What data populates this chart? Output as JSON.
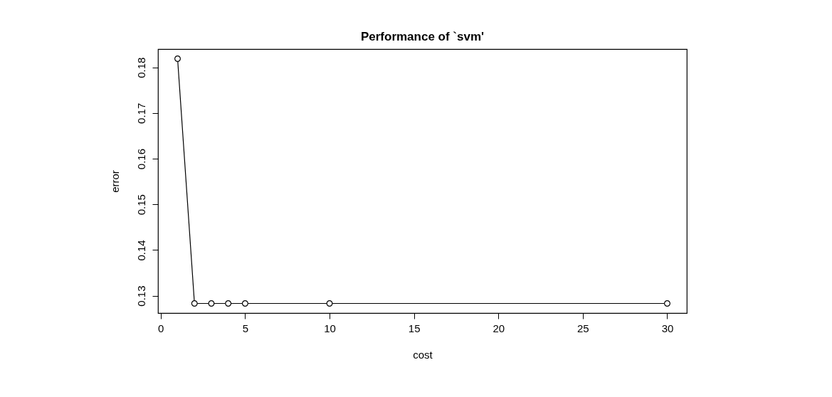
{
  "chart_data": {
    "type": "line",
    "title": "Performance of `svm'",
    "xlabel": "cost",
    "ylabel": "error",
    "marker": "circle",
    "line_style": "solid",
    "x": [
      1,
      2,
      3,
      4,
      5,
      10,
      30
    ],
    "series": [
      {
        "color": "#000000",
        "values": [
          0.1819,
          0.1283,
          0.1283,
          0.1283,
          0.1283,
          0.1283,
          0.1283
        ]
      }
    ],
    "xlim": [
      -0.16,
      31.16
    ],
    "xticks": [
      0,
      5,
      10,
      15,
      20,
      25,
      30
    ],
    "ylim": [
      0.1262,
      0.184
    ],
    "yticks": [
      0.13,
      0.14,
      0.15,
      0.16,
      0.17,
      0.18
    ]
  }
}
